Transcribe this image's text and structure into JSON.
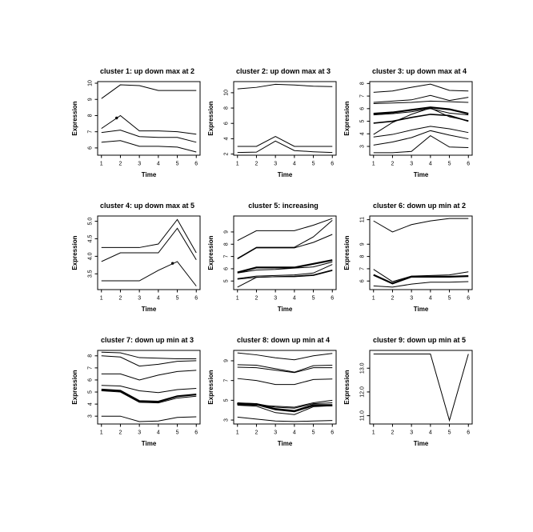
{
  "page": {
    "background": "#ffffff",
    "line_color": "#000000",
    "text_color": "#000000"
  },
  "figure": {
    "layout": "3x3 grid of R-style line plots",
    "xlabel": "Time",
    "ylabel": "Expression"
  },
  "chart_data": [
    {
      "type": "line",
      "title": "cluster 1: up down max at 2",
      "xlabel": "Time",
      "ylabel": "Expression",
      "x": [
        1,
        2,
        3,
        4,
        5,
        6
      ],
      "xtick_labels": [
        "1",
        "2",
        "3",
        "4",
        "5",
        "6"
      ],
      "xlim": [
        0.8,
        6.2
      ],
      "ylim": [
        5.55,
        10.1
      ],
      "ytick_values": [
        6,
        7,
        8,
        9,
        10
      ],
      "ytick_labels": [
        "6",
        "7",
        "8",
        "9",
        "10"
      ],
      "grid": false,
      "series": [
        {
          "name": "line-1",
          "width": 1,
          "values": [
            9.05,
            9.9,
            9.85,
            9.55,
            9.55,
            9.55
          ]
        },
        {
          "name": "line-2",
          "width": 1,
          "values": [
            7.2,
            8.0,
            7.05,
            7.05,
            7.0,
            6.85
          ]
        },
        {
          "name": "line-3",
          "width": 1,
          "values": [
            6.95,
            7.1,
            6.7,
            6.65,
            6.65,
            6.35
          ]
        },
        {
          "name": "line-4",
          "width": 1,
          "values": [
            6.35,
            6.45,
            6.1,
            6.1,
            6.05,
            5.75
          ]
        }
      ],
      "markers": [
        {
          "x": 1.8,
          "y": 7.85
        }
      ]
    },
    {
      "type": "line",
      "title": "cluster 2: up down max at 3",
      "xlabel": "Time",
      "ylabel": "Expression",
      "x": [
        1,
        2,
        3,
        4,
        5,
        6
      ],
      "xtick_labels": [
        "1",
        "2",
        "3",
        "4",
        "5",
        "6"
      ],
      "xlim": [
        0.8,
        6.2
      ],
      "ylim": [
        1.85,
        11.45
      ],
      "ytick_values": [
        2,
        4,
        6,
        8,
        10
      ],
      "ytick_labels": [
        "2",
        "4",
        "6",
        "8",
        "10"
      ],
      "grid": false,
      "series": [
        {
          "name": "line-1",
          "width": 1,
          "values": [
            10.5,
            10.7,
            11.1,
            11.0,
            10.85,
            10.8
          ]
        },
        {
          "name": "line-2",
          "width": 1,
          "values": [
            3.0,
            3.0,
            4.3,
            3.0,
            3.0,
            3.0
          ]
        },
        {
          "name": "line-3",
          "width": 1,
          "values": [
            2.2,
            2.25,
            3.7,
            2.45,
            2.3,
            2.2
          ]
        }
      ],
      "markers": []
    },
    {
      "type": "line",
      "title": "cluster 3: up down max at 4",
      "xlabel": "Time",
      "ylabel": "Expression",
      "x": [
        1,
        2,
        3,
        4,
        5,
        6
      ],
      "xtick_labels": [
        "1",
        "2",
        "3",
        "4",
        "5",
        "6"
      ],
      "xlim": [
        0.8,
        6.2
      ],
      "ylim": [
        2.3,
        8.15
      ],
      "ytick_values": [
        3,
        4,
        5,
        6,
        7,
        8
      ],
      "ytick_labels": [
        "3",
        "4",
        "5",
        "6",
        "7",
        "8"
      ],
      "grid": false,
      "series": [
        {
          "name": "line-1",
          "width": 1,
          "values": [
            7.3,
            7.4,
            7.7,
            7.95,
            7.45,
            7.4
          ]
        },
        {
          "name": "line-2",
          "width": 1,
          "values": [
            6.5,
            6.6,
            6.7,
            7.05,
            6.65,
            6.9
          ]
        },
        {
          "name": "line-3",
          "width": 1,
          "values": [
            6.4,
            6.45,
            6.5,
            6.6,
            6.55,
            6.5
          ]
        },
        {
          "name": "line-4",
          "width": 2.2,
          "values": [
            5.6,
            5.7,
            5.9,
            6.1,
            5.95,
            5.6
          ]
        },
        {
          "name": "line-5",
          "width": 1,
          "values": [
            5.5,
            5.6,
            5.75,
            6.0,
            5.65,
            5.5
          ]
        },
        {
          "name": "line-6",
          "width": 1.6,
          "values": [
            4.85,
            5.0,
            5.3,
            5.55,
            5.45,
            5.0
          ]
        },
        {
          "name": "line-7",
          "width": 1,
          "values": [
            3.95,
            4.9,
            5.55,
            6.05,
            5.35,
            5.05
          ]
        },
        {
          "name": "line-8",
          "width": 1,
          "values": [
            3.75,
            3.95,
            4.3,
            4.6,
            4.4,
            4.1
          ]
        },
        {
          "name": "line-9",
          "width": 1,
          "values": [
            3.1,
            3.35,
            3.7,
            4.25,
            3.9,
            3.6
          ]
        },
        {
          "name": "line-10",
          "width": 1,
          "values": [
            2.5,
            2.5,
            2.6,
            3.85,
            2.95,
            2.9
          ]
        }
      ],
      "markers": []
    },
    {
      "type": "line",
      "title": "cluster 4: up down max at 5",
      "xlabel": "Time",
      "ylabel": "Expression",
      "x": [
        1,
        2,
        3,
        4,
        5,
        6
      ],
      "xtick_labels": [
        "1",
        "2",
        "3",
        "4",
        "5",
        "6"
      ],
      "xlim": [
        0.8,
        6.2
      ],
      "ylim": [
        3.05,
        5.15
      ],
      "ytick_values": [
        3.5,
        4.0,
        4.5,
        5.0
      ],
      "ytick_labels": [
        "3.5",
        "4.0",
        "4.5",
        "5.0"
      ],
      "grid": false,
      "series": [
        {
          "name": "line-1",
          "width": 1,
          "values": [
            4.25,
            4.25,
            4.25,
            4.35,
            5.05,
            4.1
          ]
        },
        {
          "name": "line-2",
          "width": 1,
          "values": [
            3.85,
            4.1,
            4.1,
            4.1,
            4.8,
            3.9
          ]
        },
        {
          "name": "line-3",
          "width": 1,
          "values": [
            3.3,
            3.3,
            3.3,
            3.6,
            3.85,
            3.15
          ]
        }
      ],
      "markers": [
        {
          "x": 4.75,
          "y": 3.8
        }
      ]
    },
    {
      "type": "line",
      "title": "cluster 5: increasing",
      "xlabel": "Time",
      "ylabel": "Expression",
      "x": [
        1,
        2,
        3,
        4,
        5,
        6
      ],
      "xtick_labels": [
        "1",
        "2",
        "3",
        "4",
        "5",
        "6"
      ],
      "xlim": [
        0.8,
        6.2
      ],
      "ylim": [
        4.3,
        10.3
      ],
      "ytick_values": [
        5,
        6,
        7,
        8,
        9
      ],
      "ytick_labels": [
        "5",
        "6",
        "7",
        "8",
        "9"
      ],
      "grid": false,
      "series": [
        {
          "name": "line-1",
          "width": 1,
          "values": [
            8.3,
            9.1,
            9.1,
            9.1,
            9.55,
            10.1
          ]
        },
        {
          "name": "line-2",
          "width": 1,
          "values": [
            6.85,
            7.75,
            7.75,
            7.75,
            8.6,
            9.95
          ]
        },
        {
          "name": "line-3",
          "width": 1,
          "values": [
            6.8,
            7.7,
            7.7,
            7.7,
            8.15,
            8.8
          ]
        },
        {
          "name": "line-4",
          "width": 2.2,
          "values": [
            5.7,
            6.1,
            6.1,
            6.1,
            6.4,
            6.7
          ]
        },
        {
          "name": "line-5",
          "width": 1,
          "values": [
            5.65,
            5.9,
            5.95,
            6.05,
            6.15,
            6.55
          ]
        },
        {
          "name": "line-6",
          "width": 1,
          "values": [
            5.2,
            5.4,
            5.45,
            5.5,
            5.65,
            6.35
          ]
        },
        {
          "name": "line-7",
          "width": 1,
          "values": [
            5.15,
            5.3,
            5.35,
            5.4,
            5.5,
            5.9
          ]
        },
        {
          "name": "line-8",
          "width": 1,
          "values": [
            4.5,
            5.3,
            5.35,
            5.35,
            5.45,
            5.85
          ]
        }
      ],
      "markers": []
    },
    {
      "type": "line",
      "title": "cluster 6: down up min at 2",
      "xlabel": "Time",
      "ylabel": "Expression",
      "x": [
        1,
        2,
        3,
        4,
        5,
        6
      ],
      "xtick_labels": [
        "1",
        "2",
        "3",
        "4",
        "5",
        "6"
      ],
      "xlim": [
        0.8,
        6.2
      ],
      "ylim": [
        5.3,
        11.3
      ],
      "ytick_values": [
        6,
        7,
        8,
        9,
        11
      ],
      "ytick_labels": [
        "6",
        "7",
        "8",
        "9",
        "11"
      ],
      "grid": false,
      "series": [
        {
          "name": "line-1",
          "width": 1,
          "values": [
            10.9,
            10.0,
            10.6,
            10.9,
            11.1,
            11.1
          ]
        },
        {
          "name": "line-2",
          "width": 1,
          "values": [
            6.95,
            5.95,
            6.4,
            6.45,
            6.5,
            6.75
          ]
        },
        {
          "name": "line-3",
          "width": 2.2,
          "values": [
            6.5,
            5.8,
            6.35,
            6.35,
            6.35,
            6.4
          ]
        },
        {
          "name": "line-4",
          "width": 1,
          "values": [
            5.6,
            5.5,
            5.75,
            5.9,
            5.9,
            5.95
          ]
        }
      ],
      "markers": []
    },
    {
      "type": "line",
      "title": "cluster 7: down up min at 3",
      "xlabel": "Time",
      "ylabel": "Expression",
      "x": [
        1,
        2,
        3,
        4,
        5,
        6
      ],
      "xtick_labels": [
        "1",
        "2",
        "3",
        "4",
        "5",
        "6"
      ],
      "xlim": [
        0.8,
        6.2
      ],
      "ylim": [
        2.35,
        8.45
      ],
      "ytick_values": [
        3,
        4,
        5,
        6,
        7,
        8
      ],
      "ytick_labels": [
        "3",
        "4",
        "5",
        "6",
        "7",
        "8"
      ],
      "grid": false,
      "series": [
        {
          "name": "line-1",
          "width": 1,
          "values": [
            8.3,
            8.25,
            7.85,
            7.8,
            7.75,
            7.75
          ]
        },
        {
          "name": "line-2",
          "width": 1,
          "values": [
            8.0,
            7.9,
            7.15,
            7.3,
            7.55,
            7.6
          ]
        },
        {
          "name": "line-3",
          "width": 1,
          "values": [
            6.5,
            6.5,
            6.0,
            6.4,
            6.7,
            6.8
          ]
        },
        {
          "name": "line-4",
          "width": 1,
          "values": [
            5.55,
            5.5,
            5.1,
            4.95,
            5.2,
            5.3
          ]
        },
        {
          "name": "line-5",
          "width": 2.2,
          "values": [
            5.2,
            5.1,
            4.25,
            4.2,
            4.65,
            4.8
          ]
        },
        {
          "name": "line-6",
          "width": 1,
          "values": [
            5.1,
            5.0,
            4.15,
            4.1,
            4.5,
            4.65
          ]
        },
        {
          "name": "line-7",
          "width": 1,
          "values": [
            3.0,
            3.0,
            2.55,
            2.6,
            2.9,
            2.95
          ]
        }
      ],
      "markers": []
    },
    {
      "type": "line",
      "title": "cluster 8: down up min at 4",
      "xlabel": "Time",
      "ylabel": "Expression",
      "x": [
        1,
        2,
        3,
        4,
        5,
        6
      ],
      "xtick_labels": [
        "1",
        "2",
        "3",
        "4",
        "5",
        "6"
      ],
      "xlim": [
        0.8,
        6.2
      ],
      "ylim": [
        2.6,
        10.05
      ],
      "ytick_values": [
        3,
        5,
        7,
        9
      ],
      "ytick_labels": [
        "3",
        "5",
        "7",
        "9"
      ],
      "grid": false,
      "series": [
        {
          "name": "line-1",
          "width": 1,
          "values": [
            9.8,
            9.6,
            9.3,
            9.1,
            9.5,
            9.75
          ]
        },
        {
          "name": "line-2",
          "width": 1,
          "values": [
            8.6,
            8.55,
            8.2,
            7.85,
            8.5,
            8.55
          ]
        },
        {
          "name": "line-3",
          "width": 1,
          "values": [
            8.35,
            8.3,
            8.05,
            7.8,
            8.3,
            8.3
          ]
        },
        {
          "name": "line-4",
          "width": 1,
          "values": [
            7.2,
            7.0,
            6.6,
            6.6,
            7.1,
            7.15
          ]
        },
        {
          "name": "line-5",
          "width": 2.6,
          "values": [
            4.65,
            4.6,
            4.1,
            3.9,
            4.5,
            4.5
          ]
        },
        {
          "name": "line-6",
          "width": 1,
          "values": [
            4.75,
            4.65,
            4.3,
            4.2,
            4.65,
            4.75
          ]
        },
        {
          "name": "line-7",
          "width": 1,
          "values": [
            4.5,
            4.4,
            3.75,
            3.55,
            4.35,
            4.45
          ]
        },
        {
          "name": "line-8",
          "width": 1,
          "values": [
            4.55,
            4.5,
            4.4,
            4.3,
            4.75,
            5.0
          ]
        },
        {
          "name": "line-9",
          "width": 1,
          "values": [
            3.3,
            3.1,
            2.9,
            2.85,
            2.9,
            2.95
          ]
        }
      ],
      "markers": [
        {
          "x": 1.05,
          "y": 4.65
        }
      ]
    },
    {
      "type": "line",
      "title": "cluster 9: down up min at 5",
      "xlabel": "Time",
      "ylabel": "Expression",
      "x": [
        1,
        2,
        3,
        4,
        5,
        6
      ],
      "xtick_labels": [
        "1",
        "2",
        "3",
        "4",
        "5",
        "6"
      ],
      "xlim": [
        0.8,
        6.2
      ],
      "ylim": [
        10.65,
        13.75
      ],
      "ytick_values": [
        11,
        12,
        13
      ],
      "ytick_labels": [
        "11.0",
        "12.0",
        "13.0"
      ],
      "grid": false,
      "series": [
        {
          "name": "line-1",
          "width": 1,
          "values": [
            13.6,
            13.6,
            13.6,
            13.6,
            10.8,
            13.6
          ]
        }
      ],
      "markers": []
    }
  ]
}
